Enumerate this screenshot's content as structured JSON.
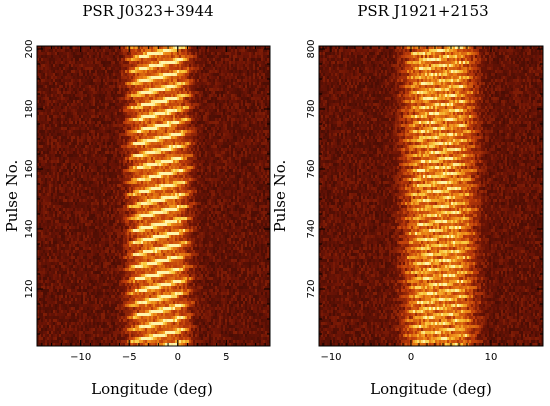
{
  "chart_data": [
    {
      "type": "heatmap",
      "title": "PSR J0323+3944",
      "xlabel": "Longitude (deg)",
      "ylabel": "Pulse No.",
      "xlim": [
        -14.5,
        9.5
      ],
      "ylim": [
        101,
        201
      ],
      "xticks": [
        -10,
        -5,
        0,
        5
      ],
      "xtick_labels": [
        "−10",
        "−5",
        "0",
        "5"
      ],
      "yticks": [
        120,
        140,
        160,
        180,
        200
      ],
      "ytick_labels": [
        "120",
        "140",
        "160",
        "180",
        "200"
      ],
      "colormap": "heat: dark red to yellow-white",
      "emission_window": {
        "center_deg": -2.0,
        "width_deg": 7.0
      },
      "subpulse_drift": "drifting bright subpulses, drift period about 4 pulses",
      "colors": {
        "background": "#3a0a04",
        "peak": "#fff3a0"
      }
    },
    {
      "type": "heatmap",
      "title": "PSR J1921+2153",
      "xlabel": "Longitude (deg)",
      "ylabel": "Pulse No.",
      "xlim": [
        -11.5,
        16.5
      ],
      "ylim": [
        701,
        801
      ],
      "xticks": [
        -10,
        0,
        10
      ],
      "xtick_labels": [
        "−10",
        "0",
        "10"
      ],
      "yticks": [
        720,
        740,
        760,
        780,
        800
      ],
      "ytick_labels": [
        "720",
        "740",
        "760",
        "780",
        "800"
      ],
      "colormap": "heat: dark red to yellow-white",
      "emission_window": {
        "center_deg": 3.5,
        "width_deg": 10.0
      },
      "subpulse_drift": "short drifting subpulse streaks across the window",
      "colors": {
        "background": "#3a0a04",
        "peak": "#fff3a0"
      }
    }
  ]
}
